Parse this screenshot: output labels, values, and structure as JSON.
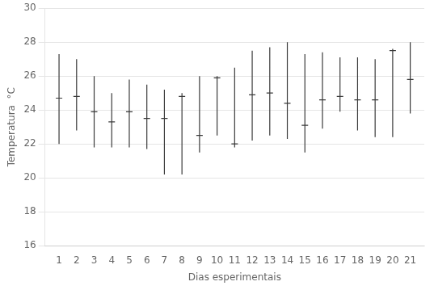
{
  "chart_data": {
    "type": "range",
    "xlabel": "Dias esperimentais",
    "ylabel": "Temperatura  °C",
    "x": [
      1,
      2,
      3,
      4,
      5,
      6,
      7,
      8,
      9,
      10,
      11,
      12,
      13,
      14,
      15,
      16,
      17,
      18,
      19,
      20,
      21
    ],
    "values": [
      24.7,
      24.8,
      23.9,
      23.3,
      23.9,
      23.5,
      23.5,
      24.8,
      22.5,
      25.9,
      22.0,
      24.9,
      25.0,
      24.4,
      23.1,
      24.6,
      24.8,
      24.6,
      24.6,
      27.5,
      25.8
    ],
    "max": [
      27.3,
      27.0,
      26.0,
      25.0,
      25.8,
      25.5,
      25.2,
      25.0,
      26.0,
      26.0,
      26.5,
      27.5,
      27.7,
      28.0,
      27.3,
      27.4,
      27.1,
      27.1,
      27.0,
      27.6,
      28.0
    ],
    "min": [
      22.0,
      22.8,
      21.8,
      21.8,
      21.8,
      21.7,
      20.2,
      20.2,
      21.5,
      22.5,
      21.8,
      22.2,
      22.5,
      22.3,
      21.5,
      22.9,
      23.9,
      22.8,
      22.4,
      22.4,
      23.8
    ],
    "color": "#3a3a3a",
    "xlim": [
      0.2,
      21.8
    ],
    "xticks": [
      1,
      2,
      3,
      4,
      5,
      6,
      7,
      8,
      9,
      10,
      11,
      12,
      13,
      14,
      15,
      16,
      17,
      18,
      19,
      20,
      21
    ],
    "ylim": [
      16,
      30
    ],
    "yticks": [
      16,
      18,
      20,
      22,
      24,
      26,
      28,
      30
    ],
    "grid": "y"
  }
}
